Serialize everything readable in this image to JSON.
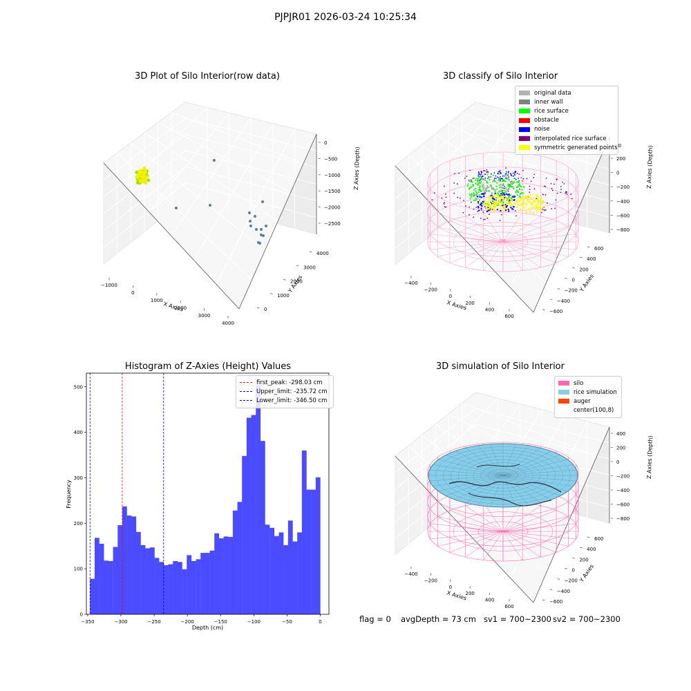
{
  "figure": {
    "suptitle": "PJPJR01 2026-03-24 10:25:34",
    "status": {
      "flag": "flag = 0",
      "avg_depth": "avgDepth = 73 cm",
      "sv1": "sv1 = 700~2300",
      "sv2": "sv2 = 700~2300"
    }
  },
  "chart_data": [
    {
      "type": "scatter",
      "title": "3D Plot of Silo Interior(row data)",
      "xlabel": "X Axies",
      "ylabel": "Y Axies",
      "zlabel": "Z Axies (Depth)",
      "xlim": [
        -1200,
        4200
      ],
      "ylim": [
        -300,
        4300
      ],
      "zlim": [
        -2900,
        150
      ],
      "x_ticks": [
        "−1000",
        "0",
        "1000",
        "2000",
        "3000",
        "4000"
      ],
      "y_ticks": [
        "0",
        "1000",
        "2000",
        "3000",
        "4000"
      ],
      "z_ticks": [
        "0",
        "−500",
        "−1000",
        "−1500",
        "−2000",
        "−2500"
      ],
      "colors": {
        "cluster": "#e6e600",
        "points": "#5a7fa0"
      }
    },
    {
      "type": "scatter",
      "title": "3D classify of Silo Interior",
      "xlabel": "X Axies",
      "ylabel": "Y Axies",
      "zlabel": "Z Axies (Depth)",
      "x_ticks": [
        "−400",
        "−200",
        "0",
        "200",
        "400",
        "600"
      ],
      "y_ticks": [
        "−600",
        "−400",
        "−200",
        "0",
        "200",
        "400",
        "600"
      ],
      "z_ticks": [
        "200",
        "0",
        "−200",
        "−400",
        "−600",
        "−800"
      ],
      "z_top_tick": "00",
      "legend": [
        {
          "label": "original data",
          "color": "#b3b3b3"
        },
        {
          "label": "inner wall",
          "color": "#808080"
        },
        {
          "label": "rice surface",
          "color": "#00ff00"
        },
        {
          "label": "obstacle",
          "color": "#ff0000"
        },
        {
          "label": "noise",
          "color": "#0000ff"
        },
        {
          "label": "interpolated rice surface",
          "color": "#800080"
        },
        {
          "label": "symmetric generated points",
          "color": "#ffff00"
        }
      ],
      "colors": {
        "silo_wire": "#ff9ec9"
      }
    },
    {
      "type": "bar",
      "title": "Histogram of Z-Axies (Height) Values",
      "xlabel": "Depth (cm)",
      "ylabel": "Frequency",
      "xlim": [
        -352,
        13
      ],
      "ylim": [
        0,
        530
      ],
      "x_ticks": [
        -350,
        -300,
        -250,
        -200,
        -150,
        -100,
        -50,
        0
      ],
      "x_tick_labels": [
        "−350",
        "−300",
        "−250",
        "−200",
        "−150",
        "−100",
        "−50",
        "0"
      ],
      "y_ticks": [
        0,
        100,
        200,
        300,
        400,
        500
      ],
      "bin_start": -346.5,
      "bin_width": 6.93,
      "values": [
        78,
        168,
        155,
        118,
        117,
        148,
        196,
        237,
        217,
        215,
        181,
        152,
        145,
        147,
        124,
        115,
        108,
        110,
        117,
        115,
        99,
        130,
        117,
        121,
        135,
        135,
        140,
        178,
        167,
        171,
        170,
        228,
        247,
        348,
        432,
        438,
        503,
        381,
        197,
        190,
        172,
        180,
        152,
        206,
        160,
        180,
        360,
        274,
        274,
        301
      ],
      "bar_color": "#4b4bff",
      "legend": [
        {
          "label": "first_peak: -298.03 cm",
          "color": "#ff0000",
          "x": -298.03
        },
        {
          "label": "Upper_limit: -235.72 cm",
          "color": "#0000c8",
          "x": -235.72
        },
        {
          "label": "Lower_limit: -346.50 cm",
          "color": "#0000c8",
          "x": -346.5
        }
      ]
    },
    {
      "type": "area",
      "title": "3D simulation of Silo Interior",
      "xlabel": "X Axies",
      "ylabel": "Y Axies",
      "zlabel": "Z Axies (Depth)",
      "x_ticks": [
        "−400",
        "−200",
        "0",
        "200",
        "400",
        "600"
      ],
      "y_ticks": [
        "−600",
        "−400",
        "−200",
        "0",
        "200",
        "400",
        "600"
      ],
      "z_ticks": [
        "400",
        "200",
        "0",
        "−200",
        "−400",
        "−600",
        "−800"
      ],
      "legend": [
        {
          "label": "silo",
          "color": "#ff69b4"
        },
        {
          "label": "rice simulation",
          "color": "#87ceeb"
        },
        {
          "label": "auger",
          "color": "#ff4500"
        },
        {
          "label": "center(100,8)",
          "color": "#ffffff"
        }
      ]
    }
  ]
}
